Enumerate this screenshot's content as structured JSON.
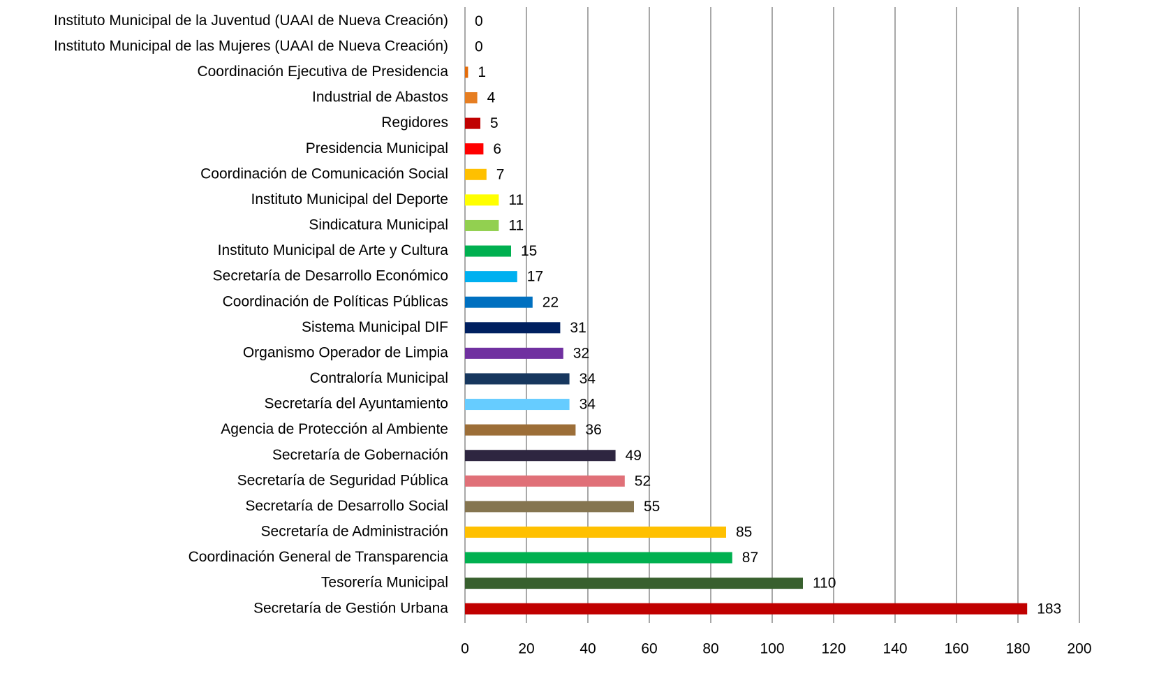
{
  "chart_data": {
    "type": "bar",
    "orientation": "horizontal",
    "categories": [
      "Instituto Municipal de la Juventud (UAAI de Nueva Creación)",
      "Instituto Municipal de las Mujeres (UAAI de Nueva Creación)",
      "Coordinación Ejecutiva de Presidencia",
      "Industrial de Abastos",
      "Regidores",
      "Presidencia Municipal",
      "Coordinación de Comunicación Social",
      "Instituto Municipal del Deporte",
      "Sindicatura Municipal",
      "Instituto Municipal de Arte y Cultura",
      "Secretaría de Desarrollo Económico",
      "Coordinación de Políticas Públicas",
      "Sistema Municipal DIF",
      "Organismo Operador de Limpia",
      "Contraloría Municipal",
      "Secretaría del Ayuntamiento",
      "Agencia de Protección al Ambiente",
      "Secretaría de Gobernación",
      "Secretaría de Seguridad Pública",
      "Secretaría de Desarrollo Social",
      "Secretaría de Administración",
      "Coordinación General de Transparencia",
      "Tesorería Municipal",
      "Secretaría de Gestión Urbana"
    ],
    "values": [
      0,
      0,
      1,
      4,
      5,
      6,
      7,
      11,
      11,
      15,
      17,
      22,
      31,
      32,
      34,
      34,
      36,
      49,
      52,
      55,
      85,
      87,
      110,
      183
    ],
    "colors": [
      "#e46c0a",
      "#e46c0a",
      "#e46c0a",
      "#e67e22",
      "#c00000",
      "#ff0000",
      "#ffc000",
      "#ffff00",
      "#92d050",
      "#00b050",
      "#00b0f0",
      "#0070c0",
      "#002060",
      "#7030a0",
      "#17375e",
      "#66ccff",
      "#9c6e38",
      "#2e2640",
      "#e07078",
      "#857550",
      "#ffc000",
      "#00b050",
      "#38602e",
      "#c00000"
    ],
    "xlim": [
      0,
      200
    ],
    "xticks": [
      0,
      20,
      40,
      60,
      80,
      100,
      120,
      140,
      160,
      180,
      200
    ],
    "grid": true
  }
}
